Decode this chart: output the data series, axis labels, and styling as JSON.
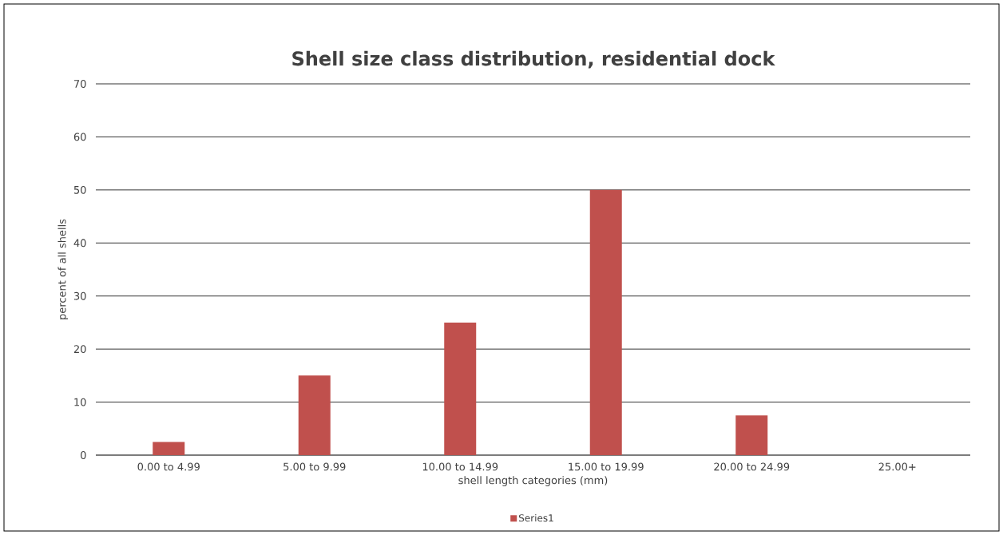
{
  "chart_data": {
    "type": "bar",
    "title": "Shell size class distribution, residential dock",
    "xlabel": "shell length categories (mm)",
    "ylabel": "percent of all shells",
    "categories": [
      "0.00 to 4.99",
      "5.00 to 9.99",
      "10.00 to 14.99",
      "15.00 to 19.99",
      "20.00 to 24.99",
      "25.00+"
    ],
    "series": [
      {
        "name": "Series1",
        "color": "#c0504d",
        "values": [
          2.5,
          15,
          25,
          50,
          7.5,
          0
        ]
      }
    ],
    "ylim": [
      0,
      70
    ],
    "yticks": [
      0,
      10,
      20,
      30,
      40,
      50,
      60,
      70
    ],
    "grid": "y",
    "legend": "bottom"
  }
}
